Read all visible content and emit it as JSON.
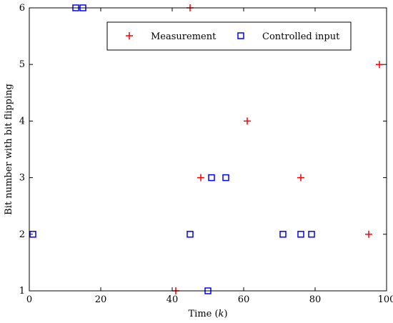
{
  "chart_data": {
    "type": "scatter",
    "xlabel_prefix": "Time (",
    "xlabel_var": "k",
    "xlabel_suffix": ")",
    "ylabel": "Bit number with bit flipping",
    "xlim": [
      0,
      100
    ],
    "ylim": [
      1,
      6
    ],
    "xticks": [
      0,
      20,
      40,
      60,
      80,
      100
    ],
    "yticks": [
      1,
      2,
      3,
      4,
      5,
      6
    ],
    "grid": false,
    "legend_position": "top-right",
    "series": [
      {
        "name": "Measurement",
        "marker": "plus",
        "color": "#ff0000",
        "points": [
          {
            "x": 41,
            "y": 1
          },
          {
            "x": 45,
            "y": 6
          },
          {
            "x": 48,
            "y": 3
          },
          {
            "x": 61,
            "y": 4
          },
          {
            "x": 76,
            "y": 3
          },
          {
            "x": 95,
            "y": 2
          },
          {
            "x": 98,
            "y": 5
          }
        ]
      },
      {
        "name": "Controlled input",
        "marker": "square",
        "color": "#0000ff",
        "points": [
          {
            "x": 1,
            "y": 2
          },
          {
            "x": 13,
            "y": 6
          },
          {
            "x": 15,
            "y": 6
          },
          {
            "x": 45,
            "y": 2
          },
          {
            "x": 50,
            "y": 1
          },
          {
            "x": 51,
            "y": 3
          },
          {
            "x": 55,
            "y": 3
          },
          {
            "x": 71,
            "y": 2
          },
          {
            "x": 76,
            "y": 2
          },
          {
            "x": 79,
            "y": 2
          }
        ]
      }
    ]
  }
}
